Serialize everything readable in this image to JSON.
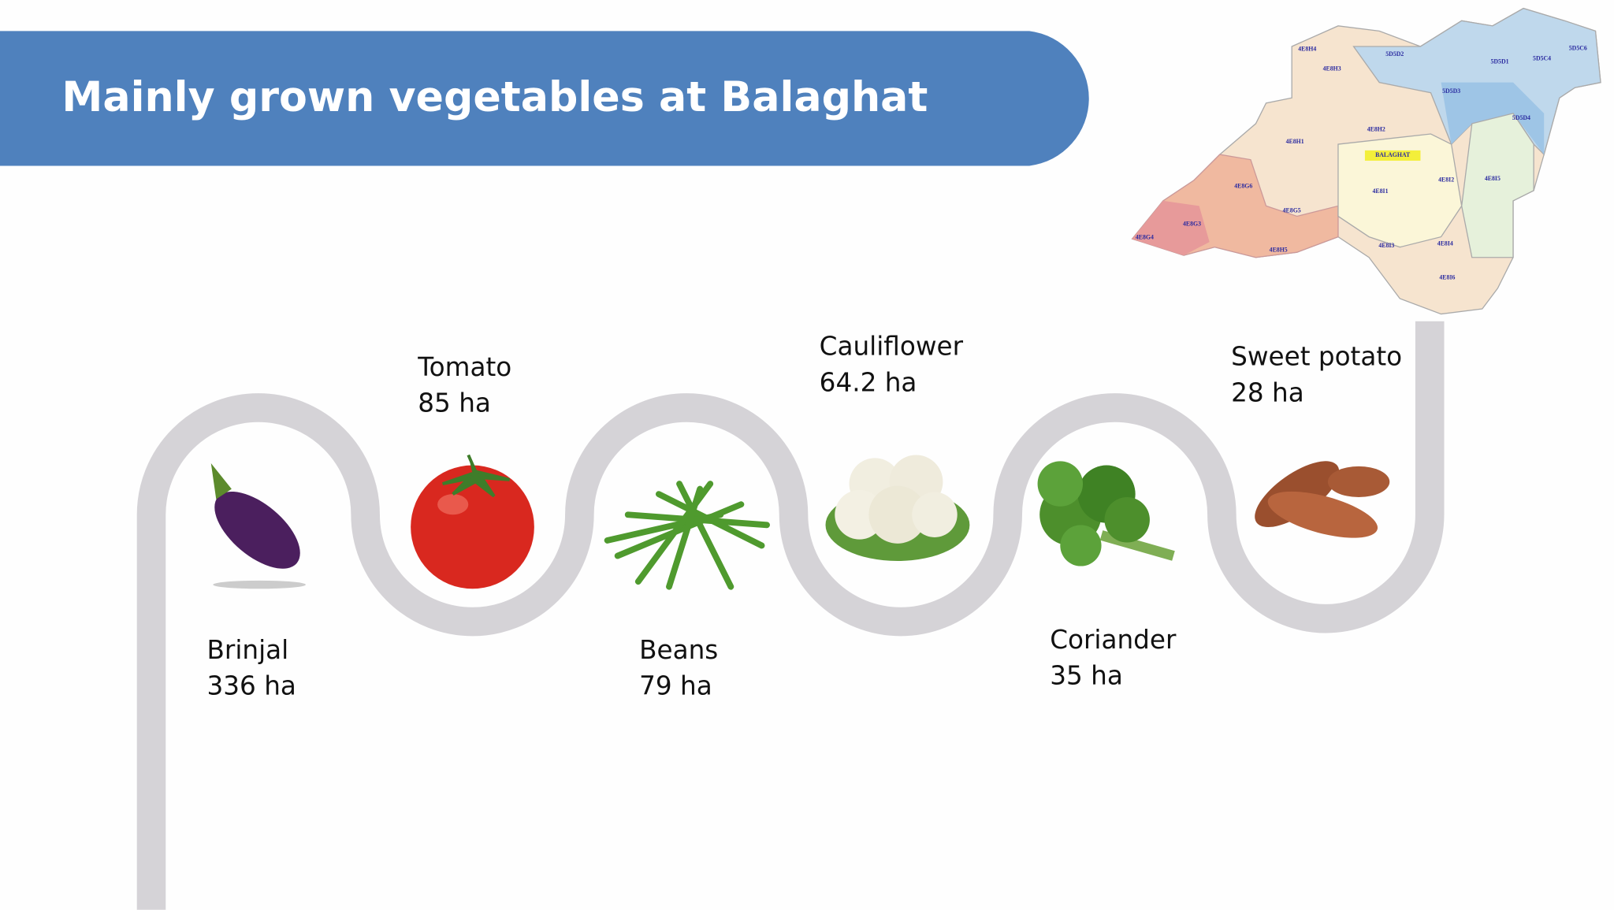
{
  "header": {
    "title": "Mainly grown vegetables at Balaghat"
  },
  "items": [
    {
      "name": "Brinjal",
      "area": "336 ha"
    },
    {
      "name": "Tomato",
      "area": "85 ha"
    },
    {
      "name": "Beans",
      "area": "79 ha"
    },
    {
      "name": "Cauliflower",
      "area": "64.2 ha"
    },
    {
      "name": "Coriander",
      "area": "35 ha"
    },
    {
      "name": "Sweet potato",
      "area": "28 ha"
    }
  ],
  "map": {
    "labels": [
      "BALAGHAT",
      "4E8H4",
      "4E8H3",
      "5D5D2",
      "5D5D1",
      "5D5C4",
      "5D5C6",
      "5D5D3",
      "5D5D4",
      "4E8H2",
      "4E8H1",
      "4E8G6",
      "4E8G5",
      "4E8G3",
      "4E8G4",
      "4E8H5",
      "4E8I1",
      "4E8I2",
      "4E8I5",
      "4E8I3",
      "4E8I4",
      "4E8I6"
    ]
  }
}
